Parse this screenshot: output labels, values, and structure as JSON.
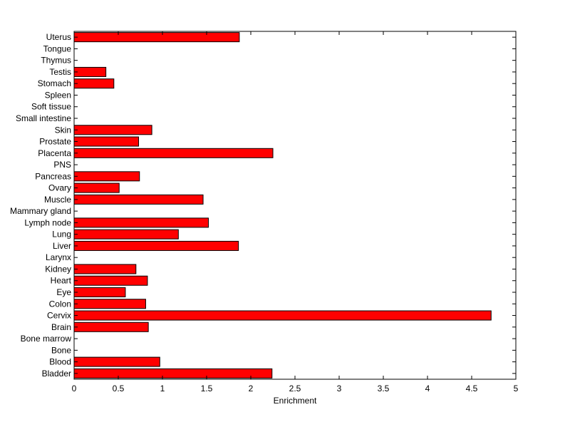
{
  "chart_data": {
    "type": "bar",
    "orientation": "horizontal",
    "categories": [
      "Uterus",
      "Tongue",
      "Thymus",
      "Testis",
      "Stomach",
      "Spleen",
      "Soft tissue",
      "Small intestine",
      "Skin",
      "Prostate",
      "Placenta",
      "PNS",
      "Pancreas",
      "Ovary",
      "Muscle",
      "Mammary gland",
      "Lymph node",
      "Lung",
      "Liver",
      "Larynx",
      "Kidney",
      "Heart",
      "Eye",
      "Colon",
      "Cervix",
      "Brain",
      "Bone marrow",
      "Bone",
      "Blood",
      "Bladder"
    ],
    "values": [
      1.87,
      0,
      0,
      0.36,
      0.45,
      0,
      0,
      0,
      0.88,
      0.73,
      2.25,
      0,
      0.74,
      0.51,
      1.46,
      0,
      1.52,
      1.18,
      1.86,
      0,
      0.7,
      0.83,
      0.58,
      0.81,
      4.72,
      0.84,
      0,
      0,
      0.97,
      2.24
    ],
    "xlabel": "Enrichment",
    "xlim": [
      0,
      5
    ],
    "xticks": [
      "0",
      "0.5",
      "1",
      "1.5",
      "2",
      "2.5",
      "3",
      "3.5",
      "4",
      "4.5",
      "5"
    ],
    "bar_color": "#ff0000",
    "grid": false
  }
}
